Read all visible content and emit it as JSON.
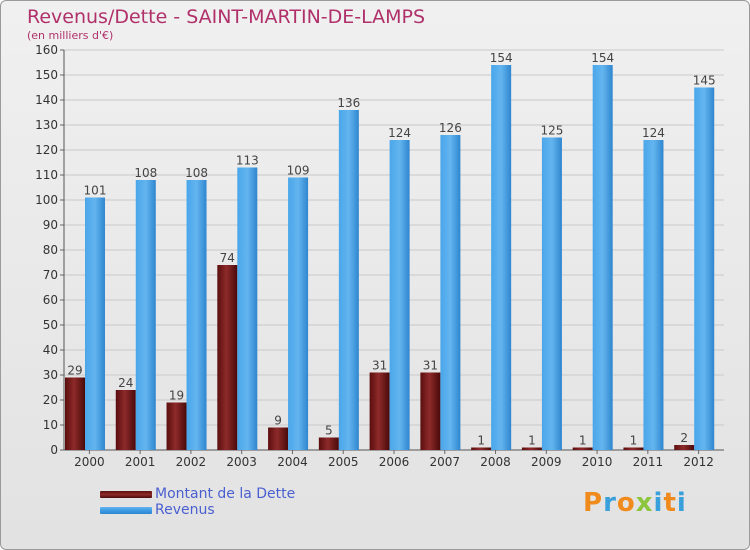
{
  "title": "Revenus/Dette - SAINT-MARTIN-DE-LAMPS",
  "subtitle": "(en milliers d'€)",
  "logo": {
    "letters": [
      "P",
      "r",
      "o",
      "x",
      "i",
      "t",
      "i"
    ],
    "colors": [
      "#f08a1c",
      "#3aa0dc",
      "#f08a1c",
      "#8cc63e",
      "#3aa0dc",
      "#f08a1c",
      "#3aa0dc"
    ]
  },
  "colors": {
    "dette": "#7a1f1f",
    "revenus": "#3d9ae3",
    "tick_text": "#333333",
    "label_text": "#444444",
    "grid": "#c9c9c9"
  },
  "legend": [
    {
      "label": "Montant de la Dette",
      "color": "#7a1f1f"
    },
    {
      "label": "Revenus",
      "color": "#3d9ae3"
    }
  ],
  "chart_data": {
    "type": "bar",
    "categories": [
      "2000",
      "2001",
      "2002",
      "2003",
      "2004",
      "2005",
      "2006",
      "2007",
      "2008",
      "2009",
      "2010",
      "2011",
      "2012"
    ],
    "series": [
      {
        "name": "Montant de la Dette",
        "values": [
          29,
          24,
          19,
          74,
          9,
          5,
          31,
          31,
          1,
          1,
          1,
          1,
          2
        ]
      },
      {
        "name": "Revenus",
        "values": [
          101,
          108,
          108,
          113,
          109,
          136,
          124,
          126,
          154,
          125,
          154,
          124,
          145
        ]
      }
    ],
    "ylim": [
      0,
      160
    ],
    "yticks": [
      0,
      10,
      20,
      30,
      40,
      50,
      60,
      70,
      80,
      90,
      100,
      110,
      120,
      130,
      140,
      150,
      160
    ],
    "grid": true,
    "xlabel": "",
    "ylabel": "",
    "legend_position": "bottom-left"
  }
}
